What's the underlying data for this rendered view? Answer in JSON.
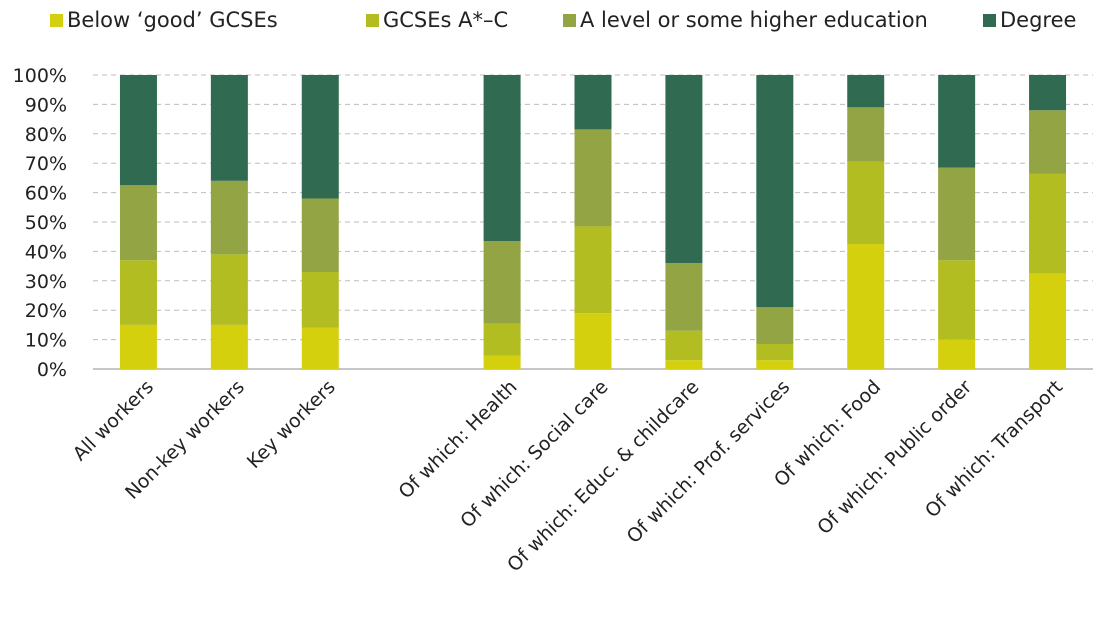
{
  "chart_data": {
    "type": "bar",
    "stacked": true,
    "title": "",
    "xlabel": "",
    "ylabel": "",
    "ylim": [
      0,
      100
    ],
    "yticks": [
      "0%",
      "10%",
      "20%",
      "30%",
      "40%",
      "50%",
      "60%",
      "70%",
      "80%",
      "90%",
      "100%"
    ],
    "legend_position": "top",
    "grid": "horizontal dashed",
    "categories": [
      "All workers",
      "Non-key workers",
      "Key workers",
      "",
      "Of which: Health",
      "Of which: Social care",
      "Of which: Educ. & childcare",
      "Of which: Prof. services",
      "Of which: Food",
      "Of which: Public order",
      "Of which: Transport"
    ],
    "series": [
      {
        "name": "Below ‘good’ GCSEs",
        "color": "#d4d00e",
        "values": [
          15,
          15,
          14,
          null,
          4.5,
          19,
          3,
          3,
          42.5,
          10,
          32.5
        ]
      },
      {
        "name": "GCSEs A*–C",
        "color": "#b1bd21",
        "values": [
          22,
          24,
          19,
          null,
          11,
          29.5,
          10,
          5.5,
          28,
          27,
          34
        ]
      },
      {
        "name": "A level or some higher education",
        "color": "#93a444",
        "values": [
          25.5,
          25,
          25,
          null,
          28,
          33,
          23,
          12.5,
          18.5,
          31.5,
          21.5
        ]
      },
      {
        "name": "Degree",
        "color": "#306b51",
        "values": [
          37.5,
          36,
          42,
          null,
          56.5,
          18.5,
          64,
          79,
          11,
          31.5,
          12
        ]
      }
    ]
  }
}
